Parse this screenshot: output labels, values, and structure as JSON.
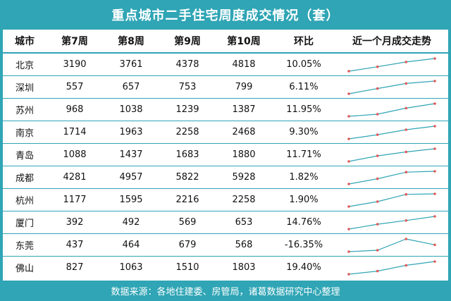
{
  "title": "重点城市二手住宅周度成交情况（套）",
  "footer": "数据来源：各地住建委、房管局，诸葛数据研究中心整理",
  "colors": {
    "frame": "#2fa5b5",
    "spark_line": "#2fa5b5",
    "spark_point": "#e05a5a"
  },
  "chart_data": {
    "type": "table",
    "columns": [
      "城市",
      "第7周",
      "第8周",
      "第9周",
      "第10周",
      "环比",
      "近一个月成交走势"
    ],
    "rows": [
      {
        "city": "北京",
        "w7": "3190",
        "w8": "3761",
        "w9": "4378",
        "w10": "4818",
        "mom": "10.05%",
        "trend": [
          3190,
          3761,
          4378,
          4818
        ]
      },
      {
        "city": "深圳",
        "w7": "557",
        "w8": "657",
        "w9": "753",
        "w10": "799",
        "mom": "6.11%",
        "trend": [
          557,
          657,
          753,
          799
        ]
      },
      {
        "city": "苏州",
        "w7": "968",
        "w8": "1038",
        "w9": "1239",
        "w10": "1387",
        "mom": "11.95%",
        "trend": [
          968,
          1038,
          1239,
          1387
        ]
      },
      {
        "city": "南京",
        "w7": "1714",
        "w8": "1963",
        "w9": "2258",
        "w10": "2468",
        "mom": "9.30%",
        "trend": [
          1714,
          1963,
          2258,
          2468
        ]
      },
      {
        "city": "青岛",
        "w7": "1088",
        "w8": "1437",
        "w9": "1683",
        "w10": "1880",
        "mom": "11.71%",
        "trend": [
          1088,
          1437,
          1683,
          1880
        ]
      },
      {
        "city": "成都",
        "w7": "4281",
        "w8": "4957",
        "w9": "5822",
        "w10": "5928",
        "mom": "1.82%",
        "trend": [
          4281,
          4957,
          5822,
          5928
        ]
      },
      {
        "city": "杭州",
        "w7": "1177",
        "w8": "1595",
        "w9": "2216",
        "w10": "2258",
        "mom": "1.90%",
        "trend": [
          1177,
          1595,
          2216,
          2258
        ]
      },
      {
        "city": "厦门",
        "w7": "392",
        "w8": "492",
        "w9": "569",
        "w10": "653",
        "mom": "14.76%",
        "trend": [
          392,
          492,
          569,
          653
        ]
      },
      {
        "city": "东莞",
        "w7": "437",
        "w8": "464",
        "w9": "679",
        "w10": "568",
        "mom": "-16.35%",
        "trend": [
          437,
          464,
          679,
          568
        ]
      },
      {
        "city": "佛山",
        "w7": "827",
        "w8": "1063",
        "w9": "1510",
        "w10": "1803",
        "mom": "19.40%",
        "trend": [
          827,
          1063,
          1510,
          1803
        ]
      }
    ]
  }
}
